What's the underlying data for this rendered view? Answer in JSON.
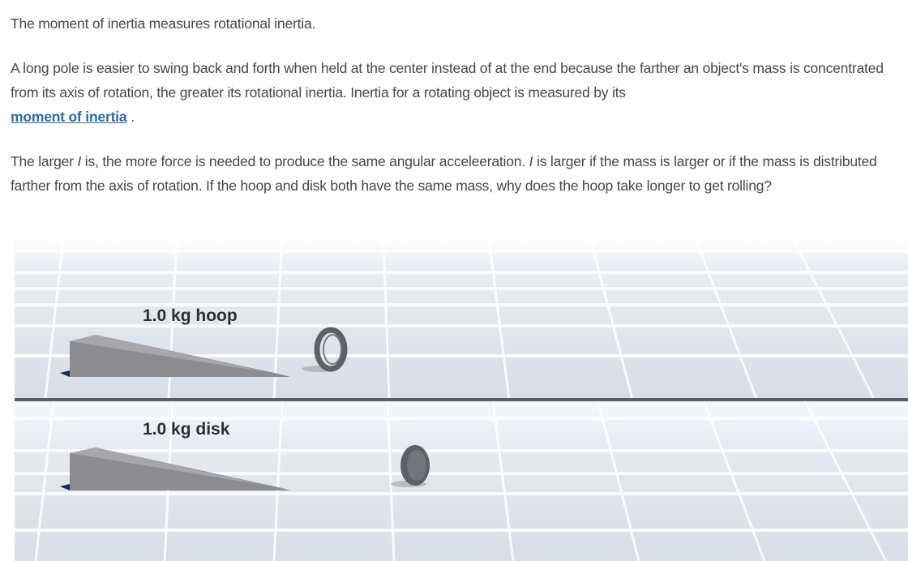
{
  "text": {
    "para1": "The moment of inertia measures rotational inertia.",
    "para2_before": "A long pole is easier to swing back and forth when held at the center instead of at the end because the farther an object's mass is concentrated from its axis of rotation, the greater its rotational inertia. Inertia for a rotating object is measured by its ",
    "para2_link": "moment of inertia",
    "para2_after": " .",
    "para3_a": "The larger ",
    "para3_i1": "I",
    "para3_b": " is, the more force is needed to produce the same angular acceleeration. ",
    "para3_i2": "I",
    "para3_c": " is larger if the mass is larger or if the mass is distributed farther from the axis of rotation. If the hoop and disk both have the same mass, why does the hoop take longer to get rolling?"
  },
  "simulation": {
    "top_lane_label": "1.0 kg hoop",
    "bottom_lane_label": "1.0 kg disk"
  },
  "colors": {
    "link": "#2a6bb1",
    "ramp": "#8a8a8e",
    "object": "#5f6066",
    "floor": "#dfe2ea",
    "divider": "#5a5c61"
  }
}
